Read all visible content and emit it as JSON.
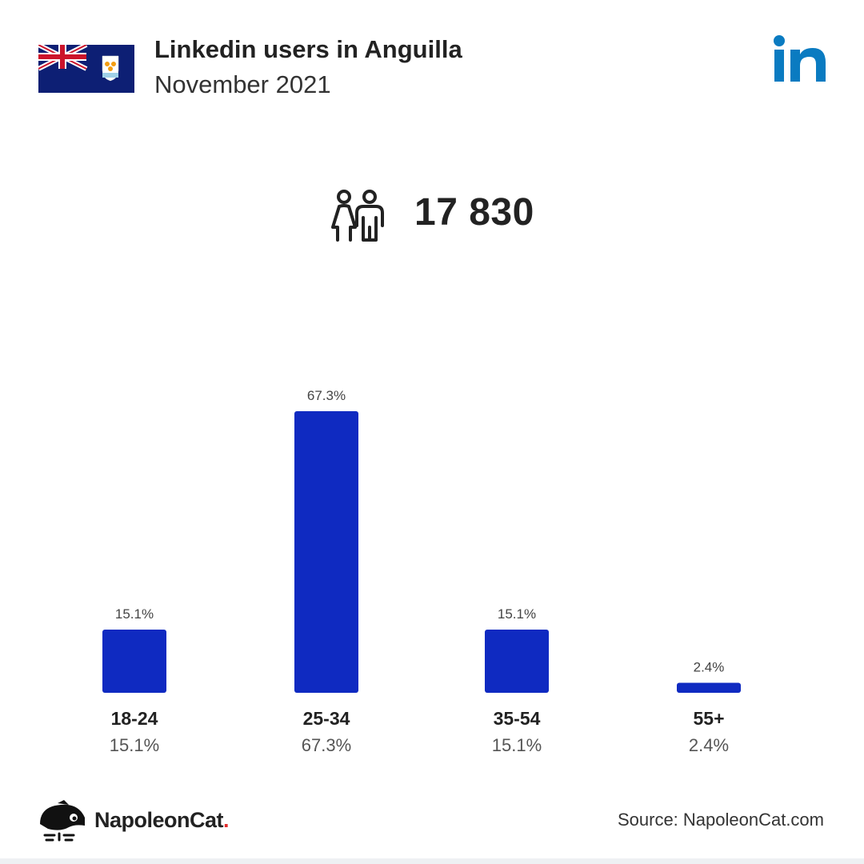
{
  "header": {
    "title": "Linkedin users in Anguilla",
    "subtitle": "November 2021",
    "flag_icon": "anguilla-flag-icon",
    "logo_icon": "linkedin-logo-icon",
    "logo_text": "in"
  },
  "summary": {
    "icon": "users-icon",
    "total_users": "17 830"
  },
  "chart_data": {
    "type": "bar",
    "title": "",
    "xlabel": "",
    "ylabel": "",
    "categories": [
      "18-24",
      "25-34",
      "35-54",
      "55+"
    ],
    "values": [
      15.1,
      67.3,
      15.1,
      2.4
    ],
    "value_labels": [
      "15.1%",
      "67.3%",
      "15.1%",
      "2.4%"
    ],
    "unit": "%",
    "ylim": [
      0,
      67.3
    ],
    "grid": false,
    "legend": "none",
    "bar_color": "#0f2ac1"
  },
  "footer": {
    "brand_icon": "napoleoncat-logo-icon",
    "brand_name": "NapoleonCat",
    "brand_dot": ".",
    "source": "Source: NapoleonCat.com"
  },
  "colors": {
    "bar": "#0f2ac1",
    "linkedin": "#0a7bc1",
    "flag_blue": "#0d1f74",
    "brand_dot": "#e22a2a"
  }
}
